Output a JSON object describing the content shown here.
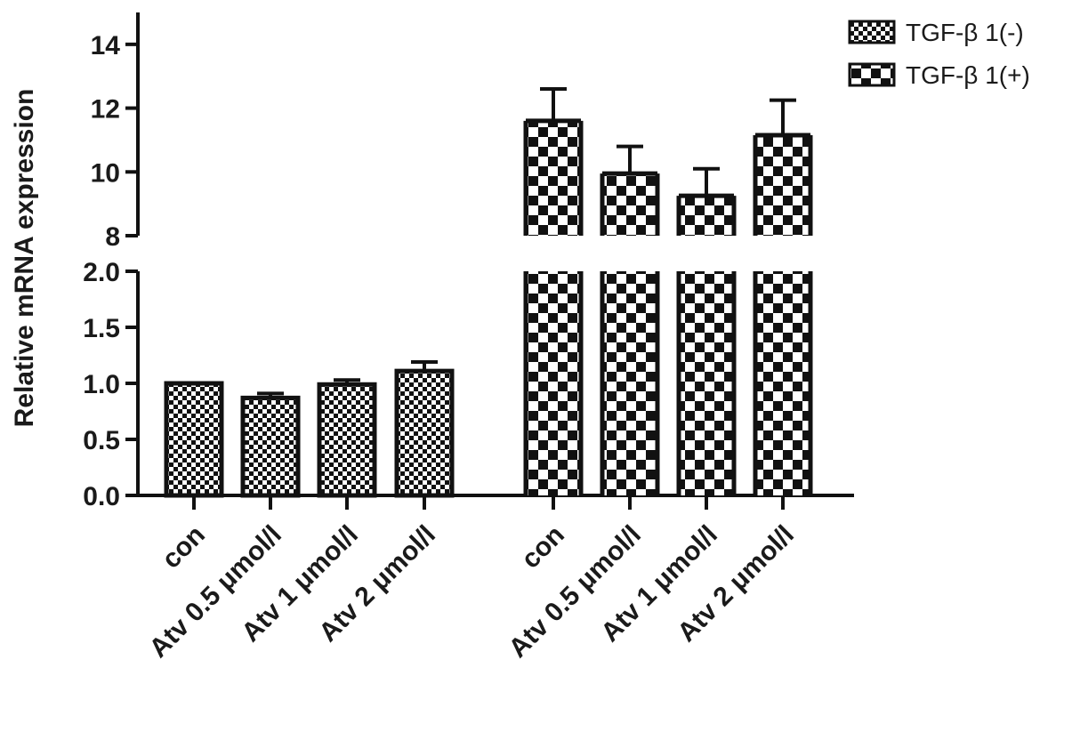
{
  "chart_data": {
    "type": "bar",
    "title": "",
    "xlabel": "",
    "ylabel": "Relative mRNA expression",
    "axis_break": {
      "lower_range": [
        0,
        2.0
      ],
      "upper_range": [
        8,
        15
      ]
    },
    "lower_ticks": [
      "0.0",
      "0.5",
      "1.0",
      "1.5",
      "2.0"
    ],
    "upper_ticks": [
      "8",
      "10",
      "12",
      "14"
    ],
    "categories": [
      "con",
      "Atv 0.5 μmol/l",
      "Atv 1 μmol/l",
      "Atv 2 μmol/l"
    ],
    "series": [
      {
        "name": "TGF-β 1(-)",
        "pattern": "fine-checker",
        "values": [
          1.0,
          0.87,
          0.99,
          1.11
        ],
        "errors": [
          0.0,
          0.04,
          0.04,
          0.08
        ]
      },
      {
        "name": "TGF-β 1(+)",
        "pattern": "coarse-checker",
        "values": [
          11.6,
          9.95,
          9.25,
          11.15
        ],
        "errors": [
          1.0,
          0.85,
          0.85,
          1.1
        ]
      }
    ],
    "legend_position": "top-right",
    "grid": false,
    "colors": {
      "ink": "#111111",
      "background": "#ffffff"
    }
  }
}
